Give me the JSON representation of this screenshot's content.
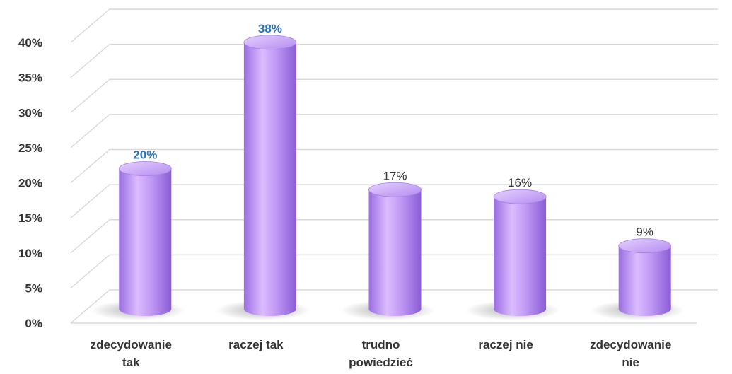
{
  "chart_data": {
    "type": "bar",
    "style": "3d-cylinder",
    "categories": [
      [
        "zdecydowanie",
        "tak"
      ],
      [
        "raczej tak"
      ],
      [
        "trudno",
        "powiedzieć"
      ],
      [
        "raczej nie"
      ],
      [
        "zdecydowanie",
        "nie"
      ]
    ],
    "values": [
      20,
      38,
      17,
      16,
      9
    ],
    "data_labels": [
      "20%",
      "38%",
      "17%",
      "16%",
      "9%"
    ],
    "highlighted": [
      true,
      true,
      false,
      false,
      false
    ],
    "yticks": [
      "0%",
      "5%",
      "10%",
      "15%",
      "20%",
      "25%",
      "30%",
      "35%",
      "40%"
    ],
    "ylim": [
      0,
      40
    ],
    "grid": true,
    "legend": "none",
    "title": "",
    "xlabel": "",
    "ylabel": "",
    "colors": {
      "bar_base": "#b48cf0",
      "bar_light": "#e3c8ff",
      "bar_dark": "#8a5cd6",
      "bar_top": "#c9a3ff",
      "highlight_label": "#2e75b6",
      "normal_label": "#333333",
      "grid": "#d9d9d9"
    }
  }
}
